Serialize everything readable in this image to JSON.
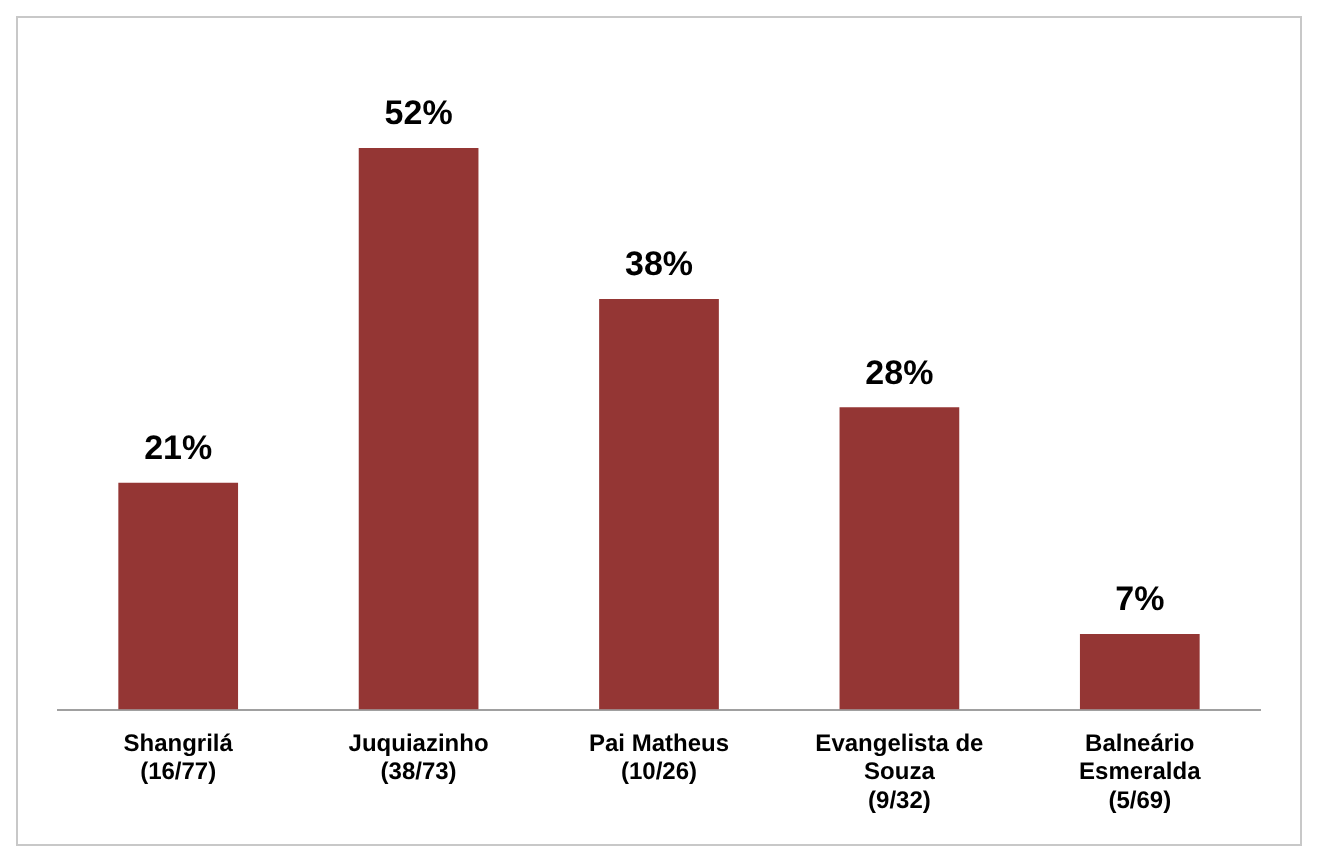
{
  "chart_data": {
    "type": "bar",
    "categories": [
      "Shangrilá (16/77)",
      "Juquiazinho (38/73)",
      "Pai Matheus (10/26)",
      "Evangelista de Souza (9/32)",
      "Balneário Esmeralda (5/69)"
    ],
    "values": [
      21,
      52,
      38,
      28,
      7
    ],
    "value_labels": [
      "21%",
      "52%",
      "38%",
      "28%",
      "7%"
    ],
    "color": "#943634",
    "grid": false,
    "legend": false
  }
}
